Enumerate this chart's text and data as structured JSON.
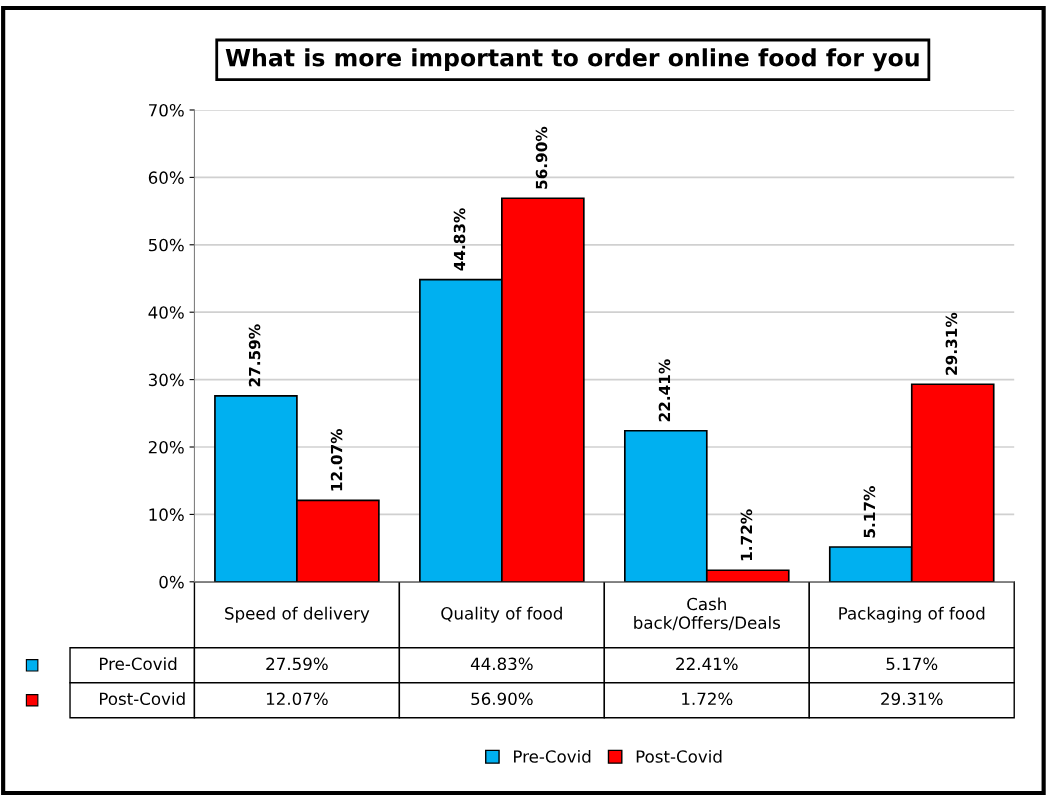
{
  "chart_data": {
    "type": "bar",
    "title": "What is more important to order online food for you",
    "categories": [
      "Speed of delivery",
      "Quality of food",
      "Cash\nback/Offers/Deals",
      "Packaging of food"
    ],
    "series": [
      {
        "name": "Pre-Covid",
        "color": "#00b0f0",
        "values": [
          27.59,
          44.83,
          22.41,
          5.17
        ],
        "value_labels": [
          "27.59%",
          "44.83%",
          "22.41%",
          "5.17%"
        ]
      },
      {
        "name": "Post-Covid",
        "color": "#ff0000",
        "values": [
          12.07,
          56.9,
          1.72,
          29.31
        ],
        "value_labels": [
          "12.07%",
          "56.90%",
          "1.72%",
          "29.31%"
        ]
      }
    ],
    "ylim": [
      0,
      70
    ],
    "yticks": [
      {
        "value": 0,
        "label": "0%"
      },
      {
        "value": 10,
        "label": "10%"
      },
      {
        "value": 20,
        "label": "20%"
      },
      {
        "value": 30,
        "label": "30%"
      },
      {
        "value": 40,
        "label": "40%"
      },
      {
        "value": 50,
        "label": "50%"
      },
      {
        "value": 60,
        "label": "60%"
      },
      {
        "value": 70,
        "label": "70%"
      }
    ],
    "grid": "y",
    "legend": "bottom"
  }
}
